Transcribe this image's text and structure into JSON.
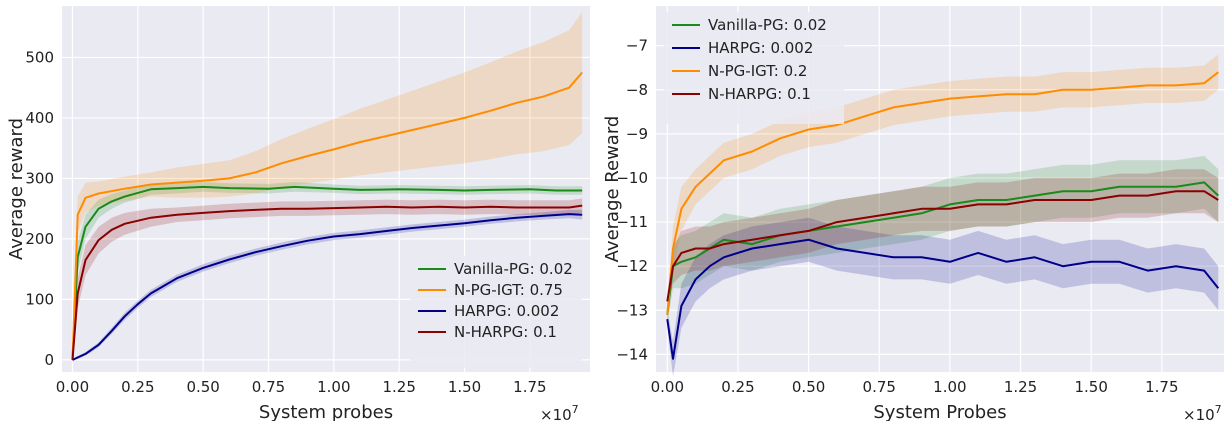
{
  "colors": {
    "background": "#eaeaf2",
    "grid": "#ffffff",
    "Vanilla-PG": "#1a8a1a",
    "N-PG-IGT": "#ff8c00",
    "HARPG": "#00008b",
    "N-HARPG": "#8b0000"
  },
  "chart_data": [
    {
      "type": "line",
      "title": "",
      "xlabel": "System probes",
      "ylabel": "Average reward",
      "x_multiplier": "×10^7",
      "xlim": [
        -0.04,
        1.98
      ],
      "ylim": [
        -20,
        585
      ],
      "xticks": [
        0.0,
        0.25,
        0.5,
        0.75,
        1.0,
        1.25,
        1.5,
        1.75
      ],
      "xtick_labels": [
        "0.00",
        "0.25",
        "0.50",
        "0.75",
        "1.00",
        "1.25",
        "1.50",
        "1.75"
      ],
      "yticks": [
        0,
        100,
        200,
        300,
        400,
        500
      ],
      "ytick_labels": [
        "0",
        "100",
        "200",
        "300",
        "400",
        "500"
      ],
      "grid": true,
      "legend_position": "lower-right",
      "series": [
        {
          "name": "Vanilla-PG: 0.02",
          "color_key": "Vanilla-PG",
          "x": [
            0.0,
            0.02,
            0.05,
            0.1,
            0.15,
            0.2,
            0.25,
            0.3,
            0.4,
            0.5,
            0.6,
            0.75,
            0.85,
            1.0,
            1.1,
            1.25,
            1.4,
            1.5,
            1.6,
            1.75,
            1.85,
            1.95
          ],
          "y": [
            0,
            170,
            220,
            250,
            262,
            270,
            276,
            282,
            284,
            286,
            284,
            283,
            286,
            283,
            281,
            282,
            281,
            280,
            281,
            282,
            280,
            280
          ],
          "band": [
            5,
            25,
            20,
            15,
            12,
            10,
            10,
            9,
            9,
            8,
            8,
            8,
            8,
            7,
            7,
            7,
            7,
            7,
            7,
            7,
            7,
            7
          ]
        },
        {
          "name": "N-PG-IGT: 0.75",
          "color_key": "N-PG-IGT",
          "x": [
            0.0,
            0.02,
            0.05,
            0.1,
            0.2,
            0.3,
            0.4,
            0.5,
            0.6,
            0.7,
            0.8,
            0.9,
            1.0,
            1.1,
            1.2,
            1.3,
            1.4,
            1.5,
            1.6,
            1.7,
            1.8,
            1.9,
            1.95
          ],
          "y": [
            0,
            240,
            268,
            275,
            283,
            290,
            293,
            296,
            300,
            310,
            325,
            337,
            348,
            360,
            370,
            380,
            390,
            400,
            412,
            425,
            435,
            450,
            475
          ],
          "band": [
            5,
            30,
            25,
            20,
            20,
            20,
            25,
            28,
            30,
            35,
            40,
            45,
            50,
            55,
            60,
            65,
            70,
            75,
            80,
            85,
            90,
            95,
            100
          ]
        },
        {
          "name": "HARPG: 0.002",
          "color_key": "HARPG",
          "x": [
            0.0,
            0.05,
            0.1,
            0.15,
            0.2,
            0.25,
            0.3,
            0.4,
            0.5,
            0.6,
            0.7,
            0.8,
            0.9,
            1.0,
            1.1,
            1.2,
            1.3,
            1.4,
            1.5,
            1.6,
            1.7,
            1.8,
            1.9,
            1.95
          ],
          "y": [
            0,
            10,
            25,
            48,
            72,
            92,
            110,
            135,
            152,
            166,
            178,
            188,
            197,
            204,
            208,
            213,
            218,
            222,
            226,
            231,
            235,
            238,
            241,
            240
          ],
          "band": [
            2,
            3,
            4,
            5,
            6,
            6,
            6,
            6,
            6,
            6,
            6,
            6,
            6,
            6,
            6,
            6,
            6,
            6,
            6,
            6,
            6,
            6,
            7,
            8
          ]
        },
        {
          "name": "N-HARPG: 0.1",
          "color_key": "N-HARPG",
          "x": [
            0.0,
            0.02,
            0.05,
            0.1,
            0.15,
            0.2,
            0.3,
            0.4,
            0.5,
            0.6,
            0.7,
            0.8,
            0.9,
            1.0,
            1.1,
            1.2,
            1.3,
            1.4,
            1.5,
            1.6,
            1.7,
            1.8,
            1.9,
            1.95
          ],
          "y": [
            0,
            110,
            165,
            198,
            215,
            225,
            235,
            240,
            243,
            246,
            248,
            250,
            250,
            251,
            252,
            253,
            252,
            253,
            252,
            253,
            252,
            252,
            252,
            255
          ],
          "band": [
            5,
            25,
            25,
            22,
            20,
            18,
            15,
            12,
            12,
            12,
            12,
            12,
            12,
            12,
            12,
            12,
            12,
            12,
            12,
            12,
            12,
            12,
            12,
            12
          ]
        }
      ]
    },
    {
      "type": "line",
      "title": "",
      "xlabel": "System Probes",
      "ylabel": "Average Reward",
      "x_multiplier": "×10^7",
      "xlim": [
        -0.04,
        1.97
      ],
      "ylim": [
        -14.4,
        -6.1
      ],
      "xticks": [
        0.0,
        0.25,
        0.5,
        0.75,
        1.0,
        1.25,
        1.5,
        1.75
      ],
      "xtick_labels": [
        "0.00",
        "0.25",
        "0.50",
        "0.75",
        "1.00",
        "1.25",
        "1.50",
        "1.75"
      ],
      "yticks": [
        -14,
        -13,
        -12,
        -11,
        -10,
        -9,
        -8,
        -7
      ],
      "ytick_labels": [
        "−14",
        "−13",
        "−12",
        "−11",
        "−10",
        "−9",
        "−8",
        "−7"
      ],
      "grid": true,
      "legend_position": "upper-left",
      "series": [
        {
          "name": "Vanilla-PG: 0.02",
          "color_key": "Vanilla-PG",
          "x": [
            0.0,
            0.02,
            0.05,
            0.1,
            0.15,
            0.2,
            0.3,
            0.4,
            0.5,
            0.6,
            0.7,
            0.8,
            0.9,
            1.0,
            1.1,
            1.2,
            1.3,
            1.4,
            1.5,
            1.6,
            1.7,
            1.8,
            1.9,
            1.95
          ],
          "y": [
            -13.1,
            -12.0,
            -11.9,
            -11.8,
            -11.6,
            -11.4,
            -11.5,
            -11.3,
            -11.2,
            -11.1,
            -11.0,
            -10.9,
            -10.8,
            -10.6,
            -10.5,
            -10.5,
            -10.4,
            -10.3,
            -10.3,
            -10.2,
            -10.2,
            -10.2,
            -10.1,
            -10.4
          ],
          "band": [
            0.2,
            0.5,
            0.6,
            0.6,
            0.6,
            0.6,
            0.6,
            0.6,
            0.6,
            0.6,
            0.6,
            0.6,
            0.6,
            0.6,
            0.6,
            0.6,
            0.6,
            0.6,
            0.6,
            0.6,
            0.6,
            0.6,
            0.6,
            0.6
          ]
        },
        {
          "name": "HARPG: 0.002",
          "color_key": "HARPG",
          "x": [
            0.0,
            0.02,
            0.05,
            0.1,
            0.15,
            0.2,
            0.3,
            0.4,
            0.5,
            0.6,
            0.7,
            0.8,
            0.9,
            1.0,
            1.1,
            1.2,
            1.3,
            1.4,
            1.5,
            1.6,
            1.7,
            1.8,
            1.9,
            1.95
          ],
          "y": [
            -13.2,
            -14.1,
            -12.9,
            -12.3,
            -12.0,
            -11.8,
            -11.6,
            -11.5,
            -11.4,
            -11.6,
            -11.7,
            -11.8,
            -11.8,
            -11.9,
            -11.7,
            -11.9,
            -11.8,
            -12.0,
            -11.9,
            -11.9,
            -12.1,
            -12.0,
            -12.1,
            -12.5
          ],
          "band": [
            0.2,
            0.4,
            0.5,
            0.5,
            0.5,
            0.5,
            0.5,
            0.5,
            0.5,
            0.5,
            0.5,
            0.5,
            0.5,
            0.5,
            0.5,
            0.5,
            0.5,
            0.5,
            0.5,
            0.5,
            0.5,
            0.5,
            0.5,
            0.5
          ]
        },
        {
          "name": "N-PG-IGT: 0.2",
          "color_key": "N-PG-IGT",
          "x": [
            0.0,
            0.02,
            0.05,
            0.1,
            0.15,
            0.2,
            0.3,
            0.4,
            0.5,
            0.6,
            0.7,
            0.8,
            0.9,
            1.0,
            1.1,
            1.2,
            1.3,
            1.4,
            1.5,
            1.6,
            1.7,
            1.8,
            1.9,
            1.95
          ],
          "y": [
            -13.1,
            -11.6,
            -10.7,
            -10.2,
            -9.9,
            -9.6,
            -9.4,
            -9.1,
            -8.9,
            -8.8,
            -8.6,
            -8.4,
            -8.3,
            -8.2,
            -8.15,
            -8.1,
            -8.1,
            -8.0,
            -8.0,
            -7.95,
            -7.9,
            -7.9,
            -7.85,
            -7.6
          ],
          "band": [
            0.2,
            0.5,
            0.5,
            0.4,
            0.4,
            0.4,
            0.4,
            0.4,
            0.4,
            0.4,
            0.4,
            0.4,
            0.4,
            0.4,
            0.4,
            0.4,
            0.4,
            0.4,
            0.4,
            0.4,
            0.4,
            0.4,
            0.4,
            0.4
          ]
        },
        {
          "name": "N-HARPG: 0.1",
          "color_key": "N-HARPG",
          "x": [
            0.0,
            0.02,
            0.05,
            0.1,
            0.15,
            0.2,
            0.3,
            0.4,
            0.5,
            0.6,
            0.7,
            0.8,
            0.9,
            1.0,
            1.1,
            1.2,
            1.3,
            1.4,
            1.5,
            1.6,
            1.7,
            1.8,
            1.9,
            1.95
          ],
          "y": [
            -12.8,
            -12.0,
            -11.7,
            -11.6,
            -11.6,
            -11.5,
            -11.4,
            -11.3,
            -11.2,
            -11.0,
            -10.9,
            -10.8,
            -10.7,
            -10.7,
            -10.6,
            -10.6,
            -10.5,
            -10.5,
            -10.5,
            -10.4,
            -10.4,
            -10.3,
            -10.3,
            -10.5
          ],
          "band": [
            0.2,
            0.4,
            0.5,
            0.5,
            0.5,
            0.5,
            0.5,
            0.5,
            0.5,
            0.5,
            0.5,
            0.5,
            0.5,
            0.5,
            0.5,
            0.5,
            0.5,
            0.5,
            0.5,
            0.5,
            0.5,
            0.5,
            0.5,
            0.5
          ]
        }
      ]
    }
  ]
}
